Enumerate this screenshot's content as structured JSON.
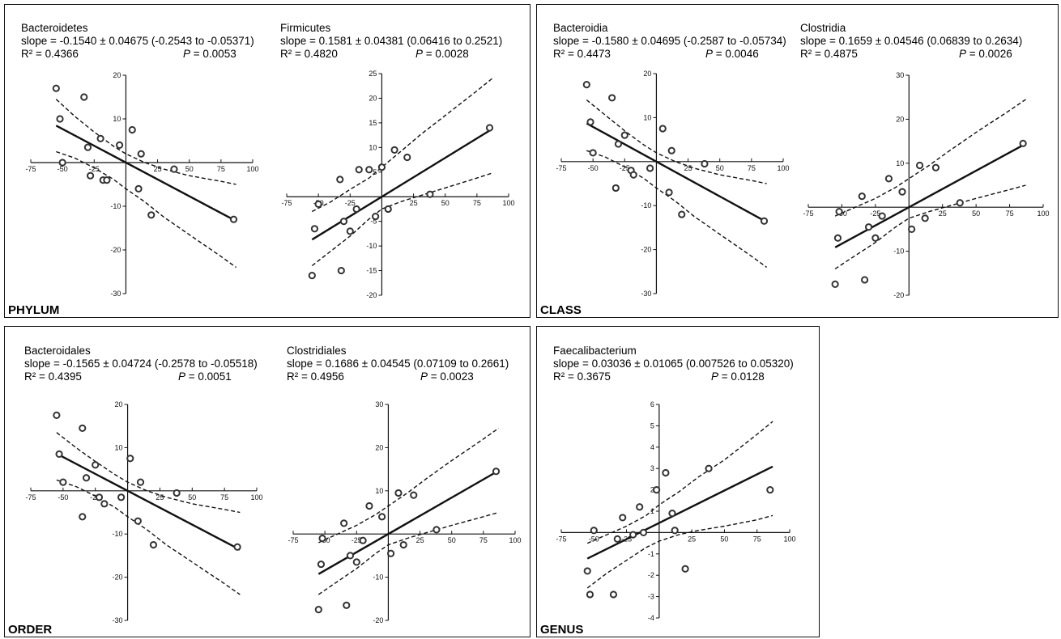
{
  "panels": [
    {
      "label": "PHYLUM"
    },
    {
      "label": "CLASS"
    },
    {
      "label": "ORDER"
    },
    {
      "label": "GENUS"
    }
  ],
  "chart_data": [
    {
      "type": "scatter",
      "panel": "PHYLUM",
      "title": "Bacteroidetes",
      "slope_text": "slope = -0.1540 ± 0.04675 (-0.2543 to -0.05371)",
      "r2_text": "R² = 0.4366",
      "p_label": "P",
      "p_value": "= 0.0053",
      "xlim": [
        -75,
        100
      ],
      "ylim": [
        -30,
        20
      ],
      "xticks": [
        -75,
        -50,
        -25,
        25,
        50,
        75,
        100
      ],
      "yticks": [
        -30,
        -20,
        -10,
        10,
        20
      ],
      "points": [
        [
          -55,
          17
        ],
        [
          -52,
          10
        ],
        [
          -50,
          0
        ],
        [
          -33,
          15
        ],
        [
          -30,
          3.5
        ],
        [
          -28,
          -3
        ],
        [
          -20,
          5.5
        ],
        [
          -18,
          -4
        ],
        [
          -15,
          -4
        ],
        [
          -5,
          4
        ],
        [
          5,
          7.5
        ],
        [
          10,
          -6
        ],
        [
          12,
          2
        ],
        [
          20,
          -12
        ],
        [
          38,
          -1.5
        ],
        [
          85,
          -13
        ]
      ],
      "fit": {
        "slope": -0.154,
        "intercept": 0.0
      },
      "ci_upper": [
        [
          -55,
          14.5
        ],
        [
          -40,
          10.5
        ],
        [
          -25,
          7
        ],
        [
          -10,
          3.8
        ],
        [
          0,
          2
        ],
        [
          15,
          0
        ],
        [
          30,
          -1.5
        ],
        [
          50,
          -3
        ],
        [
          75,
          -4.3
        ],
        [
          87,
          -5
        ]
      ],
      "ci_lower": [
        [
          -55,
          2.5
        ],
        [
          -40,
          1
        ],
        [
          -25,
          -1.2
        ],
        [
          -10,
          -3.8
        ],
        [
          0,
          -6
        ],
        [
          15,
          -9
        ],
        [
          30,
          -12.5
        ],
        [
          50,
          -16.5
        ],
        [
          75,
          -21.5
        ],
        [
          87,
          -24
        ]
      ]
    },
    {
      "type": "scatter",
      "panel": "PHYLUM",
      "title": "Firmicutes",
      "slope_text": "slope = 0.1581 ± 0.04381 (0.06416 to 0.2521)",
      "r2_text": "R² = 0.4820",
      "p_label": "P",
      "p_value": "= 0.0028",
      "xlim": [
        -75,
        100
      ],
      "ylim": [
        -20,
        25
      ],
      "xticks": [
        -75,
        -50,
        -25,
        25,
        50,
        75,
        100
      ],
      "yticks": [
        -20,
        -15,
        -10,
        -5,
        5,
        10,
        15,
        20,
        25
      ],
      "points": [
        [
          -55,
          -16
        ],
        [
          -53,
          -6.5
        ],
        [
          -50,
          -1.5
        ],
        [
          -33,
          3.5
        ],
        [
          -32,
          -15
        ],
        [
          -30,
          -5
        ],
        [
          -25,
          -7
        ],
        [
          -20,
          -2.5
        ],
        [
          -18,
          5.5
        ],
        [
          -10,
          5.5
        ],
        [
          -5,
          -4
        ],
        [
          0,
          6
        ],
        [
          5,
          -2.5
        ],
        [
          10,
          9.5
        ],
        [
          20,
          8
        ],
        [
          38,
          0.5
        ],
        [
          85,
          14
        ]
      ],
      "fit": {
        "slope": 0.1581,
        "intercept": 0.0
      },
      "ci_upper": [
        [
          -55,
          -3
        ],
        [
          -40,
          -1
        ],
        [
          -25,
          1.5
        ],
        [
          -10,
          3.8
        ],
        [
          0,
          6
        ],
        [
          15,
          9.2
        ],
        [
          30,
          12.5
        ],
        [
          50,
          16.5
        ],
        [
          75,
          21.5
        ],
        [
          87,
          24
        ]
      ],
      "ci_lower": [
        [
          -55,
          -14
        ],
        [
          -40,
          -11
        ],
        [
          -25,
          -8
        ],
        [
          -10,
          -4.5
        ],
        [
          0,
          -2.5
        ],
        [
          15,
          -1
        ],
        [
          30,
          0.2
        ],
        [
          50,
          1.8
        ],
        [
          75,
          3.8
        ],
        [
          87,
          4.8
        ]
      ]
    },
    {
      "type": "scatter",
      "panel": "CLASS",
      "title": "Bacteroidia",
      "slope_text": "slope = -0.1580 ± 0.04695 (-0.2587 to -0.05734)",
      "r2_text": "R² = 0.4473",
      "p_label": "P",
      "p_value": "= 0.0046",
      "xlim": [
        -75,
        100
      ],
      "ylim": [
        -30,
        20
      ],
      "xticks": [
        -75,
        -50,
        -25,
        25,
        50,
        75,
        100
      ],
      "yticks": [
        -30,
        -20,
        -10,
        10,
        20
      ],
      "points": [
        [
          -55,
          17.5
        ],
        [
          -52,
          9
        ],
        [
          -50,
          2
        ],
        [
          -35,
          14.5
        ],
        [
          -32,
          -6
        ],
        [
          -30,
          4
        ],
        [
          -25,
          6
        ],
        [
          -20,
          -2
        ],
        [
          -18,
          -3
        ],
        [
          -5,
          -1.5
        ],
        [
          5,
          7.5
        ],
        [
          10,
          -7
        ],
        [
          12,
          2.5
        ],
        [
          20,
          -12
        ],
        [
          38,
          -0.5
        ],
        [
          85,
          -13.5
        ]
      ],
      "fit": {
        "slope": -0.158,
        "intercept": 0.0
      },
      "ci_upper": [
        [
          -55,
          14
        ],
        [
          -40,
          10.5
        ],
        [
          -25,
          7
        ],
        [
          -10,
          3.8
        ],
        [
          0,
          2
        ],
        [
          15,
          0
        ],
        [
          30,
          -1.5
        ],
        [
          50,
          -3
        ],
        [
          75,
          -4.3
        ],
        [
          87,
          -5
        ]
      ],
      "ci_lower": [
        [
          -55,
          2.5
        ],
        [
          -40,
          1
        ],
        [
          -25,
          -1.2
        ],
        [
          -10,
          -3.8
        ],
        [
          0,
          -6
        ],
        [
          15,
          -9
        ],
        [
          30,
          -12.5
        ],
        [
          50,
          -16.5
        ],
        [
          75,
          -21.5
        ],
        [
          87,
          -24
        ]
      ]
    },
    {
      "type": "scatter",
      "panel": "CLASS",
      "title": "Clostridia",
      "slope_text": "slope = 0.1659 ± 0.04546 (0.06839 to 0.2634)",
      "r2_text": "R² = 0.4875",
      "p_label": "P",
      "p_value": "= 0.0026",
      "xlim": [
        -75,
        100
      ],
      "ylim": [
        -20,
        30
      ],
      "xticks": [
        -75,
        -50,
        -25,
        25,
        50,
        75,
        100
      ],
      "yticks": [
        -20,
        -10,
        10,
        20,
        30
      ],
      "points": [
        [
          -55,
          -17.5
        ],
        [
          -53,
          -7
        ],
        [
          -52,
          -1
        ],
        [
          -35,
          2.5
        ],
        [
          -33,
          -16.5
        ],
        [
          -30,
          -4.5
        ],
        [
          -25,
          -7
        ],
        [
          -20,
          -2
        ],
        [
          -15,
          6.5
        ],
        [
          -5,
          3.5
        ],
        [
          2,
          -5
        ],
        [
          8,
          9.5
        ],
        [
          12,
          -2.5
        ],
        [
          20,
          9
        ],
        [
          38,
          1
        ],
        [
          85,
          14.5
        ]
      ],
      "fit": {
        "slope": 0.1659,
        "intercept": 0.0
      },
      "ci_upper": [
        [
          -55,
          -2
        ],
        [
          -40,
          0
        ],
        [
          -25,
          2
        ],
        [
          -10,
          4.5
        ],
        [
          0,
          6.5
        ],
        [
          15,
          9.5
        ],
        [
          30,
          12.8
        ],
        [
          50,
          17
        ],
        [
          75,
          22
        ],
        [
          87,
          24.5
        ]
      ],
      "ci_lower": [
        [
          -55,
          -14
        ],
        [
          -40,
          -11
        ],
        [
          -25,
          -8
        ],
        [
          -10,
          -4.5
        ],
        [
          0,
          -2.5
        ],
        [
          15,
          -1
        ],
        [
          30,
          0.3
        ],
        [
          50,
          2
        ],
        [
          75,
          4
        ],
        [
          87,
          5
        ]
      ]
    },
    {
      "type": "scatter",
      "panel": "ORDER",
      "title": "Bacteroidales",
      "slope_text": "slope = -0.1565 ± 0.04724 (-0.2578 to -0.05518)",
      "r2_text": "R² = 0.4395",
      "p_label": "P",
      "p_value": "= 0.0051",
      "xlim": [
        -75,
        100
      ],
      "ylim": [
        -30,
        20
      ],
      "xticks": [
        -75,
        -50,
        -25,
        25,
        50,
        75,
        100
      ],
      "yticks": [
        -30,
        -20,
        -10,
        10,
        20
      ],
      "points": [
        [
          -55,
          17.5
        ],
        [
          -53,
          8.5
        ],
        [
          -50,
          2
        ],
        [
          -35,
          14.5
        ],
        [
          -35,
          -6
        ],
        [
          -32,
          3
        ],
        [
          -25,
          6
        ],
        [
          -22,
          -1.5
        ],
        [
          -18,
          -3
        ],
        [
          -5,
          -1.5
        ],
        [
          2,
          7.5
        ],
        [
          8,
          -7
        ],
        [
          10,
          2
        ],
        [
          20,
          -12.5
        ],
        [
          38,
          -0.5
        ],
        [
          85,
          -13
        ]
      ],
      "fit": {
        "slope": -0.1565,
        "intercept": 0.0
      },
      "ci_upper": [
        [
          -55,
          13.5
        ],
        [
          -40,
          10
        ],
        [
          -25,
          6.8
        ],
        [
          -10,
          3.8
        ],
        [
          0,
          2
        ],
        [
          15,
          0
        ],
        [
          30,
          -1.5
        ],
        [
          50,
          -3
        ],
        [
          75,
          -4.3
        ],
        [
          87,
          -5
        ]
      ],
      "ci_lower": [
        [
          -55,
          2.5
        ],
        [
          -40,
          1
        ],
        [
          -25,
          -1.2
        ],
        [
          -10,
          -3.8
        ],
        [
          0,
          -6
        ],
        [
          15,
          -9
        ],
        [
          30,
          -12.5
        ],
        [
          50,
          -16.5
        ],
        [
          75,
          -21.5
        ],
        [
          87,
          -24
        ]
      ]
    },
    {
      "type": "scatter",
      "panel": "ORDER",
      "title": "Clostridiales",
      "slope_text": "slope = 0.1686 ± 0.04545 (0.07109 to 0.2661)",
      "r2_text": "R² = 0.4956",
      "p_label": "P",
      "p_value": "= 0.0023",
      "xlim": [
        -75,
        100
      ],
      "ylim": [
        -20,
        30
      ],
      "xticks": [
        -75,
        -50,
        -25,
        25,
        50,
        75,
        100
      ],
      "yticks": [
        -20,
        -10,
        10,
        20,
        30
      ],
      "points": [
        [
          -55,
          -17.5
        ],
        [
          -53,
          -7
        ],
        [
          -52,
          -1
        ],
        [
          -35,
          2.5
        ],
        [
          -33,
          -16.5
        ],
        [
          -30,
          -5
        ],
        [
          -25,
          -6.5
        ],
        [
          -20,
          -1.5
        ],
        [
          -15,
          6.5
        ],
        [
          -5,
          4
        ],
        [
          2,
          -4.5
        ],
        [
          8,
          9.5
        ],
        [
          12,
          -2.5
        ],
        [
          20,
          9
        ],
        [
          38,
          1
        ],
        [
          85,
          14.5
        ]
      ],
      "fit": {
        "slope": 0.1686,
        "intercept": 0.0
      },
      "ci_upper": [
        [
          -55,
          -2
        ],
        [
          -40,
          0
        ],
        [
          -25,
          2
        ],
        [
          -10,
          4.5
        ],
        [
          0,
          6.5
        ],
        [
          15,
          9.5
        ],
        [
          30,
          12.8
        ],
        [
          50,
          17
        ],
        [
          75,
          22
        ],
        [
          87,
          24.5
        ]
      ],
      "ci_lower": [
        [
          -55,
          -14
        ],
        [
          -40,
          -11
        ],
        [
          -25,
          -8
        ],
        [
          -10,
          -4.5
        ],
        [
          0,
          -2.5
        ],
        [
          15,
          -1
        ],
        [
          30,
          0.3
        ],
        [
          50,
          2
        ],
        [
          75,
          4
        ],
        [
          87,
          5
        ]
      ]
    },
    {
      "type": "scatter",
      "panel": "GENUS",
      "title": "Faecalibacterium",
      "slope_text": "slope = 0.03036 ± 0.01065 (0.007526 to 0.05320)",
      "r2_text": "R² = 0.3675",
      "p_label": "P",
      "p_value": "= 0.0128",
      "xlim": [
        -75,
        100
      ],
      "ylim": [
        -4,
        6
      ],
      "xticks": [
        -75,
        -50,
        -25,
        25,
        50,
        75,
        100
      ],
      "yticks": [
        -4,
        -3,
        -2,
        -1,
        1,
        2,
        3,
        4,
        5,
        6
      ],
      "points": [
        [
          -55,
          -1.8
        ],
        [
          -53,
          -2.9
        ],
        [
          -50,
          0.1
        ],
        [
          -35,
          -2.9
        ],
        [
          -32,
          -0.3
        ],
        [
          -28,
          0.7
        ],
        [
          -20,
          -0.1
        ],
        [
          -15,
          1.2
        ],
        [
          -12,
          0
        ],
        [
          -2,
          2
        ],
        [
          5,
          2.8
        ],
        [
          10,
          0.9
        ],
        [
          12,
          0.1
        ],
        [
          20,
          -1.7
        ],
        [
          38,
          3
        ],
        [
          85,
          2
        ]
      ],
      "fit": {
        "slope": 0.03036,
        "intercept": 0.45
      },
      "ci_upper": [
        [
          -55,
          -0.5
        ],
        [
          -40,
          -0.1
        ],
        [
          -25,
          0.3
        ],
        [
          -10,
          0.8
        ],
        [
          0,
          1.3
        ],
        [
          15,
          1.9
        ],
        [
          30,
          2.6
        ],
        [
          50,
          3.4
        ],
        [
          75,
          4.6
        ],
        [
          87,
          5.2
        ]
      ],
      "ci_lower": [
        [
          -55,
          -2.6
        ],
        [
          -40,
          -1.9
        ],
        [
          -25,
          -1.3
        ],
        [
          -10,
          -0.7
        ],
        [
          0,
          -0.4
        ],
        [
          15,
          -0.1
        ],
        [
          30,
          0.1
        ],
        [
          50,
          0.3
        ],
        [
          75,
          0.6
        ],
        [
          87,
          0.8
        ]
      ]
    }
  ]
}
